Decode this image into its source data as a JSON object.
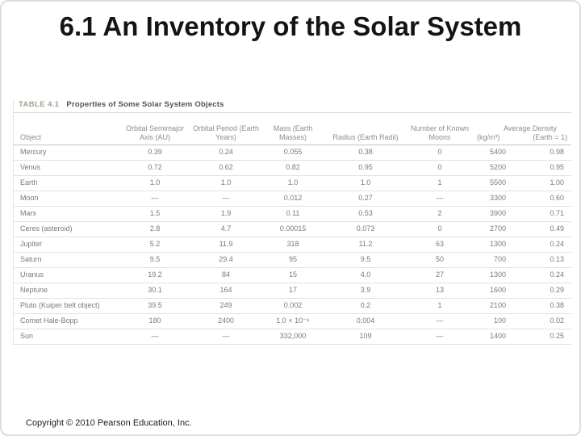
{
  "slide": {
    "title": "6.1 An Inventory of the Solar System",
    "copyright": "Copyright © 2010 Pearson Education, Inc."
  },
  "table": {
    "caption_label": "TABLE 4.1",
    "caption_title": "Properties of Some Solar System Objects",
    "columns": [
      "Object",
      "Orbital Semimajor Axis (AU)",
      "Orbital Period (Earth Years)",
      "Mass (Earth Masses)",
      "Radius (Earth Radii)",
      "Number of Known Moons",
      "(kg/m³)",
      "(Earth = 1)"
    ],
    "density_group_header": "Average Density",
    "rows": [
      [
        "Mercury",
        "0.39",
        "0.24",
        "0.055",
        "0.38",
        "0",
        "5400",
        "0.98"
      ],
      [
        "Venus",
        "0.72",
        "0.62",
        "0.82",
        "0.95",
        "0",
        "5200",
        "0.95"
      ],
      [
        "Earth",
        "1.0",
        "1.0",
        "1.0",
        "1.0",
        "1",
        "5500",
        "1.00"
      ],
      [
        "Moon",
        "—",
        "—",
        "0.012",
        "0.27",
        "—",
        "3300",
        "0.60"
      ],
      [
        "Mars",
        "1.5",
        "1.9",
        "0.11",
        "0.53",
        "2",
        "3900",
        "0.71"
      ],
      [
        "Ceres (asteroid)",
        "2.8",
        "4.7",
        "0.00015",
        "0.073",
        "0",
        "2700",
        "0.49"
      ],
      [
        "Jupiter",
        "5.2",
        "11.9",
        "318",
        "11.2",
        "63",
        "1300",
        "0.24"
      ],
      [
        "Saturn",
        "9.5",
        "29.4",
        "95",
        "9.5",
        "50",
        "700",
        "0.13"
      ],
      [
        "Uranus",
        "19.2",
        "84",
        "15",
        "4.0",
        "27",
        "1300",
        "0.24"
      ],
      [
        "Neptune",
        "30.1",
        "164",
        "17",
        "3.9",
        "13",
        "1600",
        "0.29"
      ],
      [
        "Pluto (Kuiper belt object)",
        "39.5",
        "249",
        "0.002",
        "0.2",
        "1",
        "2100",
        "0.38"
      ],
      [
        "Comet Hale-Bopp",
        "180",
        "2400",
        "1.0 × 10⁻⁹",
        "0.004",
        "—",
        "100",
        "0.02"
      ],
      [
        "Sun",
        "—",
        "—",
        "332,000",
        "109",
        "—",
        "1400",
        "0.25"
      ]
    ]
  }
}
